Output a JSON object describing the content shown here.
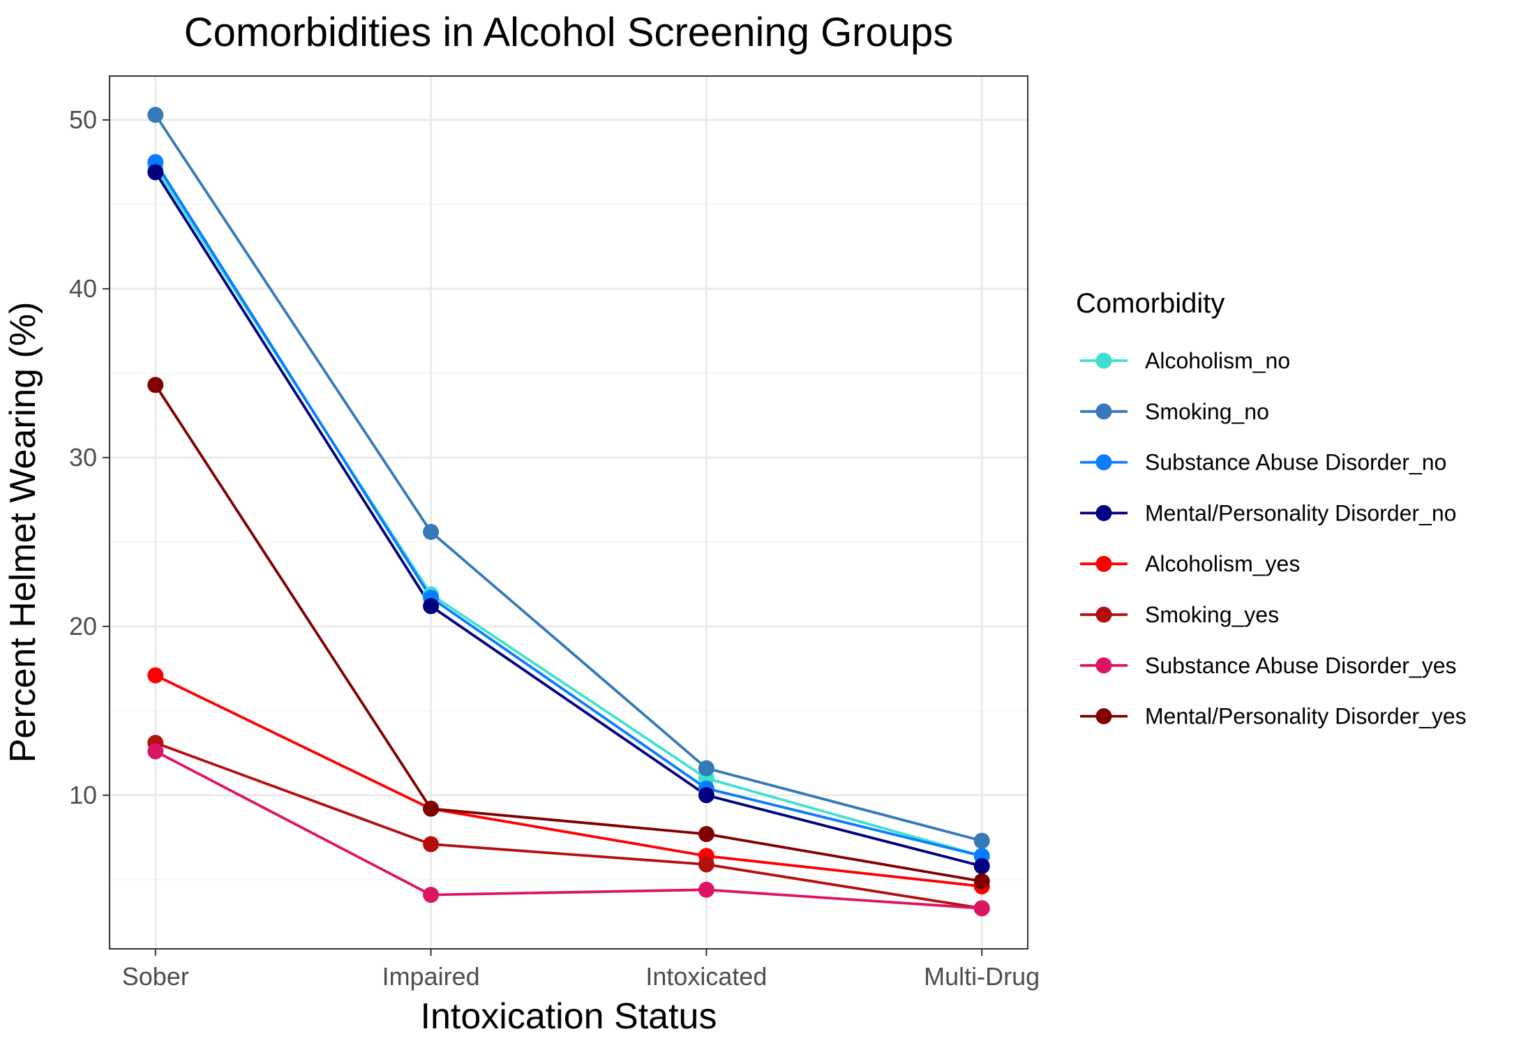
{
  "chart_data": {
    "type": "line",
    "title": "Comorbidities in Alcohol Screening Groups",
    "xlabel": "Intoxication Status",
    "ylabel": "Percent Helmet Wearing (%)",
    "categories": [
      "Sober",
      "Impaired",
      "Intoxicated",
      "Multi-Drug"
    ],
    "ylim": [
      0.9,
      52.6
    ],
    "yticks": [
      10,
      20,
      30,
      40,
      50
    ],
    "grid": true,
    "legend": {
      "title": "Comorbidity",
      "position": "right"
    },
    "series": [
      {
        "name": "Alcoholism_no",
        "color": "#40E0D0",
        "values": [
          47.2,
          21.9,
          11.0,
          6.4
        ]
      },
      {
        "name": "Smoking_no",
        "color": "#3579B9",
        "values": [
          50.3,
          25.6,
          11.6,
          7.3
        ]
      },
      {
        "name": "Substance Abuse Disorder_no",
        "color": "#0A7CFF",
        "values": [
          47.5,
          21.7,
          10.4,
          6.4
        ]
      },
      {
        "name": "Mental/Personality Disorder_no",
        "color": "#000080",
        "values": [
          46.9,
          21.2,
          10.0,
          5.8
        ]
      },
      {
        "name": "Alcoholism_yes",
        "color": "#FF0000",
        "values": [
          17.1,
          9.2,
          6.4,
          4.6
        ]
      },
      {
        "name": "Smoking_yes",
        "color": "#B30F0F",
        "values": [
          13.1,
          7.1,
          5.9,
          3.3
        ]
      },
      {
        "name": "Substance Abuse Disorder_yes",
        "color": "#DC1464",
        "values": [
          12.6,
          4.1,
          4.4,
          3.3
        ]
      },
      {
        "name": "Mental/Personality Disorder_yes",
        "color": "#800000",
        "values": [
          34.3,
          9.2,
          7.7,
          4.9
        ]
      }
    ]
  }
}
